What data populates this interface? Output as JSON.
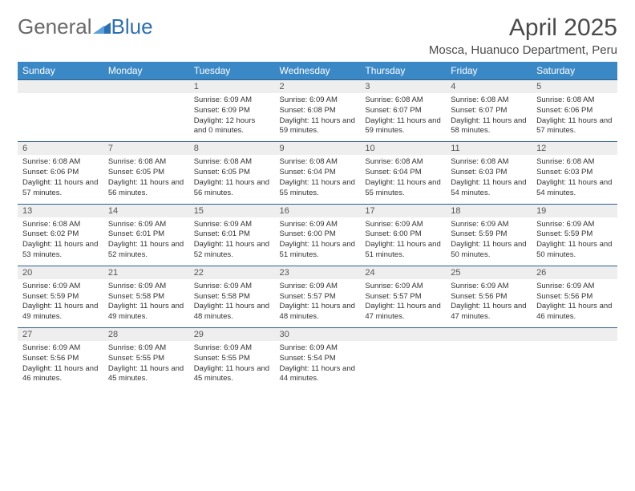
{
  "brand": {
    "general": "General",
    "blue": "Blue",
    "icon_color": "#2d6fb5"
  },
  "header": {
    "title": "April 2025",
    "location": "Mosca, Huanuco Department, Peru"
  },
  "colors": {
    "header_bg": "#3b88c7",
    "header_text": "#ffffff",
    "daynum_bg": "#eeeeee",
    "row_border": "#2d5f8f",
    "body_text": "#333333",
    "page_bg": "#ffffff"
  },
  "weekdays": [
    "Sunday",
    "Monday",
    "Tuesday",
    "Wednesday",
    "Thursday",
    "Friday",
    "Saturday"
  ],
  "leading_blanks": 2,
  "days": [
    {
      "n": "1",
      "sunrise": "6:09 AM",
      "sunset": "6:09 PM",
      "daylight": "12 hours and 0 minutes."
    },
    {
      "n": "2",
      "sunrise": "6:09 AM",
      "sunset": "6:08 PM",
      "daylight": "11 hours and 59 minutes."
    },
    {
      "n": "3",
      "sunrise": "6:08 AM",
      "sunset": "6:07 PM",
      "daylight": "11 hours and 59 minutes."
    },
    {
      "n": "4",
      "sunrise": "6:08 AM",
      "sunset": "6:07 PM",
      "daylight": "11 hours and 58 minutes."
    },
    {
      "n": "5",
      "sunrise": "6:08 AM",
      "sunset": "6:06 PM",
      "daylight": "11 hours and 57 minutes."
    },
    {
      "n": "6",
      "sunrise": "6:08 AM",
      "sunset": "6:06 PM",
      "daylight": "11 hours and 57 minutes."
    },
    {
      "n": "7",
      "sunrise": "6:08 AM",
      "sunset": "6:05 PM",
      "daylight": "11 hours and 56 minutes."
    },
    {
      "n": "8",
      "sunrise": "6:08 AM",
      "sunset": "6:05 PM",
      "daylight": "11 hours and 56 minutes."
    },
    {
      "n": "9",
      "sunrise": "6:08 AM",
      "sunset": "6:04 PM",
      "daylight": "11 hours and 55 minutes."
    },
    {
      "n": "10",
      "sunrise": "6:08 AM",
      "sunset": "6:04 PM",
      "daylight": "11 hours and 55 minutes."
    },
    {
      "n": "11",
      "sunrise": "6:08 AM",
      "sunset": "6:03 PM",
      "daylight": "11 hours and 54 minutes."
    },
    {
      "n": "12",
      "sunrise": "6:08 AM",
      "sunset": "6:03 PM",
      "daylight": "11 hours and 54 minutes."
    },
    {
      "n": "13",
      "sunrise": "6:08 AM",
      "sunset": "6:02 PM",
      "daylight": "11 hours and 53 minutes."
    },
    {
      "n": "14",
      "sunrise": "6:09 AM",
      "sunset": "6:01 PM",
      "daylight": "11 hours and 52 minutes."
    },
    {
      "n": "15",
      "sunrise": "6:09 AM",
      "sunset": "6:01 PM",
      "daylight": "11 hours and 52 minutes."
    },
    {
      "n": "16",
      "sunrise": "6:09 AM",
      "sunset": "6:00 PM",
      "daylight": "11 hours and 51 minutes."
    },
    {
      "n": "17",
      "sunrise": "6:09 AM",
      "sunset": "6:00 PM",
      "daylight": "11 hours and 51 minutes."
    },
    {
      "n": "18",
      "sunrise": "6:09 AM",
      "sunset": "5:59 PM",
      "daylight": "11 hours and 50 minutes."
    },
    {
      "n": "19",
      "sunrise": "6:09 AM",
      "sunset": "5:59 PM",
      "daylight": "11 hours and 50 minutes."
    },
    {
      "n": "20",
      "sunrise": "6:09 AM",
      "sunset": "5:59 PM",
      "daylight": "11 hours and 49 minutes."
    },
    {
      "n": "21",
      "sunrise": "6:09 AM",
      "sunset": "5:58 PM",
      "daylight": "11 hours and 49 minutes."
    },
    {
      "n": "22",
      "sunrise": "6:09 AM",
      "sunset": "5:58 PM",
      "daylight": "11 hours and 48 minutes."
    },
    {
      "n": "23",
      "sunrise": "6:09 AM",
      "sunset": "5:57 PM",
      "daylight": "11 hours and 48 minutes."
    },
    {
      "n": "24",
      "sunrise": "6:09 AM",
      "sunset": "5:57 PM",
      "daylight": "11 hours and 47 minutes."
    },
    {
      "n": "25",
      "sunrise": "6:09 AM",
      "sunset": "5:56 PM",
      "daylight": "11 hours and 47 minutes."
    },
    {
      "n": "26",
      "sunrise": "6:09 AM",
      "sunset": "5:56 PM",
      "daylight": "11 hours and 46 minutes."
    },
    {
      "n": "27",
      "sunrise": "6:09 AM",
      "sunset": "5:56 PM",
      "daylight": "11 hours and 46 minutes."
    },
    {
      "n": "28",
      "sunrise": "6:09 AM",
      "sunset": "5:55 PM",
      "daylight": "11 hours and 45 minutes."
    },
    {
      "n": "29",
      "sunrise": "6:09 AM",
      "sunset": "5:55 PM",
      "daylight": "11 hours and 45 minutes."
    },
    {
      "n": "30",
      "sunrise": "6:09 AM",
      "sunset": "5:54 PM",
      "daylight": "11 hours and 44 minutes."
    }
  ],
  "labels": {
    "sunrise": "Sunrise: ",
    "sunset": "Sunset: ",
    "daylight": "Daylight: "
  }
}
